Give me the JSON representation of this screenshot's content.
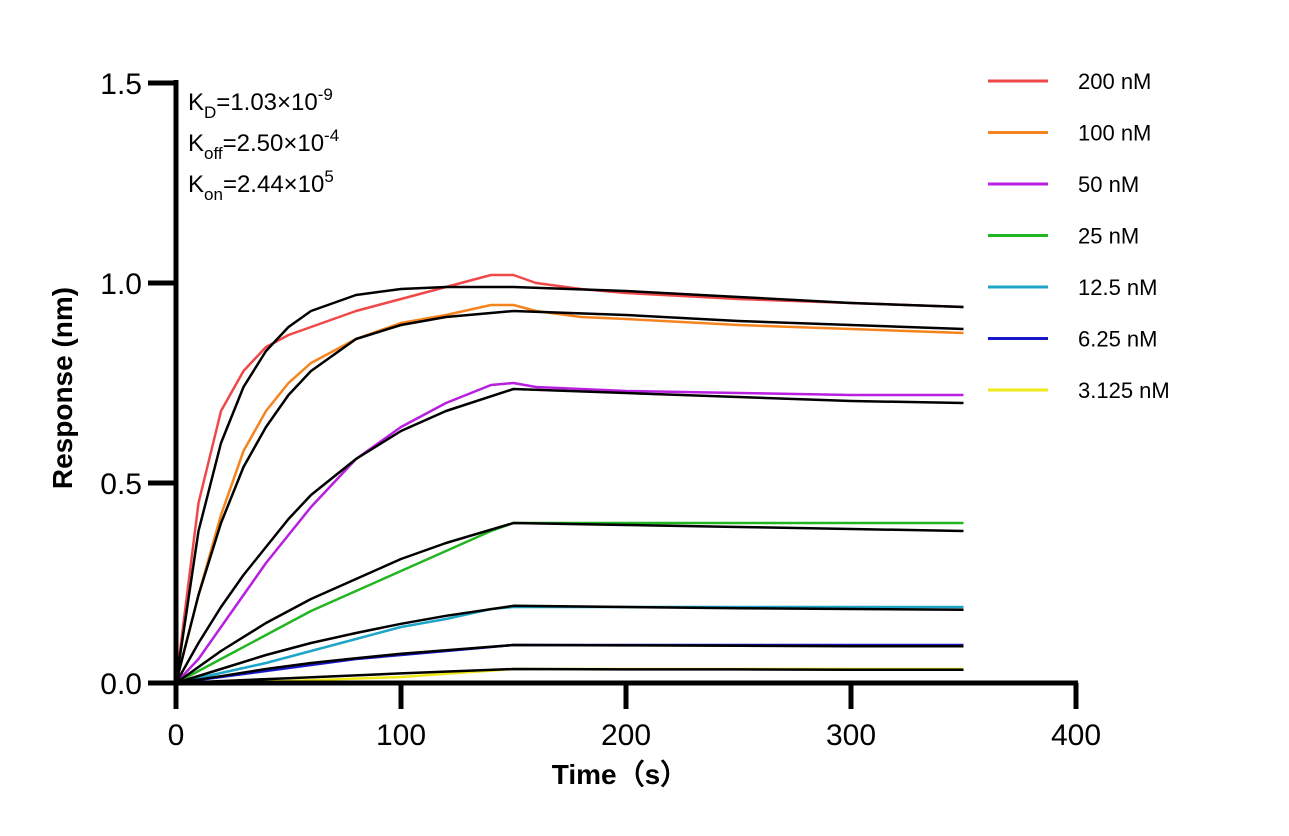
{
  "chart_data": {
    "type": "line",
    "xlabel": "Time（s）",
    "ylabel": "Response (nm)",
    "xlim": [
      0,
      400
    ],
    "ylim": [
      0,
      1.5
    ],
    "x_ticks": [
      "0",
      "100",
      "200",
      "300",
      "400"
    ],
    "y_ticks": [
      "0.0",
      "0.5",
      "1.0",
      "1.5"
    ],
    "grid": false,
    "legend_position": "top-right",
    "fit_color": "#000000",
    "annotations": {
      "kd": {
        "label": "K",
        "sub": "D",
        "value": "=1.03×10",
        "exp": "-9"
      },
      "koff": {
        "label": "K",
        "sub": "off",
        "value": "=2.50×10",
        "exp": "-4"
      },
      "kon": {
        "label": "K",
        "sub": "on",
        "value": "=2.44×10",
        "exp": "5"
      }
    },
    "series": [
      {
        "name": "200 nM",
        "color": "#f04848",
        "x": [
          0,
          10,
          20,
          30,
          40,
          50,
          60,
          80,
          100,
          120,
          140,
          150,
          160,
          180,
          200,
          250,
          300,
          350
        ],
        "y": [
          0,
          0.45,
          0.68,
          0.78,
          0.84,
          0.87,
          0.89,
          0.93,
          0.96,
          0.99,
          1.02,
          1.02,
          1.0,
          0.985,
          0.975,
          0.96,
          0.95,
          0.94
        ]
      },
      {
        "name": "100 nM",
        "color": "#f5841f",
        "x": [
          0,
          10,
          20,
          30,
          40,
          50,
          60,
          80,
          100,
          120,
          140,
          150,
          160,
          180,
          200,
          250,
          300,
          350
        ],
        "y": [
          0,
          0.22,
          0.42,
          0.58,
          0.68,
          0.75,
          0.8,
          0.86,
          0.9,
          0.92,
          0.945,
          0.945,
          0.93,
          0.915,
          0.91,
          0.895,
          0.885,
          0.875
        ]
      },
      {
        "name": "50 nM",
        "color": "#b81fe0",
        "x": [
          0,
          10,
          20,
          30,
          40,
          50,
          60,
          80,
          100,
          120,
          140,
          150,
          160,
          180,
          200,
          250,
          300,
          350
        ],
        "y": [
          0,
          0.06,
          0.14,
          0.22,
          0.3,
          0.37,
          0.44,
          0.56,
          0.64,
          0.7,
          0.745,
          0.75,
          0.74,
          0.735,
          0.73,
          0.725,
          0.72,
          0.72
        ]
      },
      {
        "name": "25 nM",
        "color": "#22b522",
        "x": [
          0,
          10,
          20,
          40,
          60,
          80,
          100,
          120,
          140,
          150,
          160,
          200,
          250,
          300,
          350
        ],
        "y": [
          0,
          0.03,
          0.06,
          0.12,
          0.18,
          0.23,
          0.28,
          0.33,
          0.38,
          0.4,
          0.4,
          0.4,
          0.4,
          0.4,
          0.4
        ]
      },
      {
        "name": "12.5 nM",
        "color": "#1ea6c8",
        "x": [
          0,
          20,
          40,
          60,
          80,
          100,
          120,
          140,
          150,
          160,
          200,
          250,
          300,
          350
        ],
        "y": [
          0,
          0.025,
          0.05,
          0.08,
          0.11,
          0.14,
          0.16,
          0.185,
          0.19,
          0.19,
          0.19,
          0.19,
          0.19,
          0.19
        ]
      },
      {
        "name": "6.25 nM",
        "color": "#1818c8",
        "x": [
          0,
          20,
          40,
          60,
          80,
          100,
          120,
          140,
          150,
          160,
          200,
          250,
          300,
          350
        ],
        "y": [
          0,
          0.015,
          0.03,
          0.045,
          0.06,
          0.07,
          0.08,
          0.09,
          0.095,
          0.095,
          0.095,
          0.095,
          0.095,
          0.095
        ]
      },
      {
        "name": "3.125 nM",
        "color": "#f0e818",
        "x": [
          0,
          50,
          75,
          100,
          125,
          150,
          200,
          250,
          300,
          350
        ],
        "y": [
          0,
          0.005,
          0.01,
          0.015,
          0.025,
          0.035,
          0.035,
          0.035,
          0.035,
          0.035
        ]
      }
    ],
    "fits": [
      {
        "x": [
          0,
          10,
          20,
          30,
          40,
          50,
          60,
          80,
          100,
          120,
          150,
          200,
          250,
          300,
          350
        ],
        "y": [
          0,
          0.38,
          0.6,
          0.74,
          0.83,
          0.89,
          0.93,
          0.97,
          0.985,
          0.99,
          0.99,
          0.98,
          0.965,
          0.95,
          0.94
        ]
      },
      {
        "x": [
          0,
          10,
          20,
          30,
          40,
          50,
          60,
          80,
          100,
          120,
          150,
          200,
          250,
          300,
          350
        ],
        "y": [
          0,
          0.22,
          0.4,
          0.54,
          0.64,
          0.72,
          0.78,
          0.86,
          0.895,
          0.915,
          0.93,
          0.92,
          0.905,
          0.895,
          0.885
        ]
      },
      {
        "x": [
          0,
          10,
          20,
          30,
          40,
          50,
          60,
          80,
          100,
          120,
          150,
          200,
          250,
          300,
          350
        ],
        "y": [
          0,
          0.1,
          0.19,
          0.27,
          0.34,
          0.41,
          0.47,
          0.56,
          0.63,
          0.68,
          0.735,
          0.725,
          0.715,
          0.705,
          0.7
        ]
      },
      {
        "x": [
          0,
          20,
          40,
          60,
          80,
          100,
          120,
          150,
          200,
          250,
          300,
          350
        ],
        "y": [
          0,
          0.08,
          0.15,
          0.21,
          0.26,
          0.31,
          0.35,
          0.4,
          0.395,
          0.39,
          0.385,
          0.38
        ]
      },
      {
        "x": [
          0,
          20,
          40,
          60,
          80,
          100,
          120,
          150,
          200,
          250,
          300,
          350
        ],
        "y": [
          0,
          0.035,
          0.07,
          0.1,
          0.125,
          0.148,
          0.168,
          0.193,
          0.19,
          0.187,
          0.185,
          0.183
        ]
      },
      {
        "x": [
          0,
          20,
          40,
          60,
          80,
          100,
          120,
          150,
          200,
          250,
          300,
          350
        ],
        "y": [
          0,
          0.017,
          0.035,
          0.05,
          0.062,
          0.073,
          0.082,
          0.095,
          0.094,
          0.093,
          0.092,
          0.092
        ]
      },
      {
        "x": [
          0,
          50,
          100,
          150,
          200,
          250,
          300,
          350
        ],
        "y": [
          0,
          0.012,
          0.024,
          0.035,
          0.034,
          0.034,
          0.033,
          0.033
        ]
      }
    ]
  }
}
